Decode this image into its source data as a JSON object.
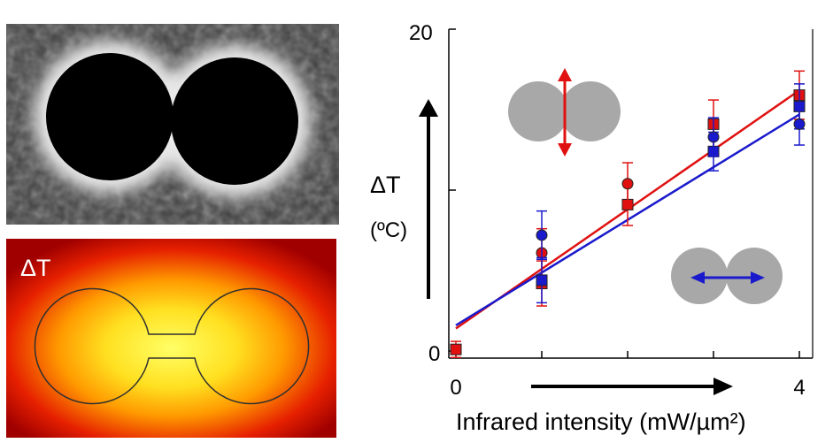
{
  "heatmap_panel": {
    "label": "ΔT"
  },
  "chart_data": {
    "type": "scatter",
    "title": "",
    "xlabel": "Infrared intensity (mW/µm²)",
    "ylabel": "ΔT",
    "ylabel_unit": "(ºC)",
    "xlim": [
      0,
      4
    ],
    "ylim": [
      0,
      20
    ],
    "x_ticks": [
      0,
      1,
      2,
      3,
      4
    ],
    "x_tick_labels": [
      "0",
      "",
      "",
      "",
      "4"
    ],
    "y_ticks": [
      0,
      10,
      20
    ],
    "y_tick_labels": [
      "0",
      "",
      "20"
    ],
    "grid": false,
    "legend": "inset dimer icons (upper-left: vertical polarization, lower-right: horizontal polarization)",
    "colors": {
      "red": "#e01010",
      "blue": "#1a1acc",
      "gray": "#a8a8a8"
    },
    "series": [
      {
        "color": "red",
        "marker": "square",
        "x": [
          0,
          1,
          2,
          3,
          4
        ],
        "y": [
          0.1,
          4.2,
          9.1,
          14.1,
          15.9
        ],
        "err": [
          0.5,
          1.4,
          1.3,
          1.5,
          1.5
        ]
      },
      {
        "color": "red",
        "marker": "circle",
        "x": [
          1,
          2
        ],
        "y": [
          6.1,
          10.4
        ],
        "err": [
          1.5,
          1.3
        ]
      },
      {
        "color": "blue",
        "marker": "square",
        "x": [
          1,
          3,
          4
        ],
        "y": [
          4.4,
          12.4,
          15.2
        ],
        "err": [
          1.4,
          1.2,
          1.4
        ]
      },
      {
        "color": "blue",
        "marker": "circle",
        "x": [
          1,
          3,
          4
        ],
        "y": [
          7.2,
          13.3,
          14.1
        ],
        "err": [
          1.5,
          1.2,
          1.3
        ]
      }
    ],
    "fit_lines": [
      {
        "color": "red",
        "x": [
          0,
          4
        ],
        "y": [
          1.4,
          16.2
        ]
      },
      {
        "color": "blue",
        "x": [
          0,
          4
        ],
        "y": [
          1.6,
          14.7
        ]
      }
    ]
  }
}
